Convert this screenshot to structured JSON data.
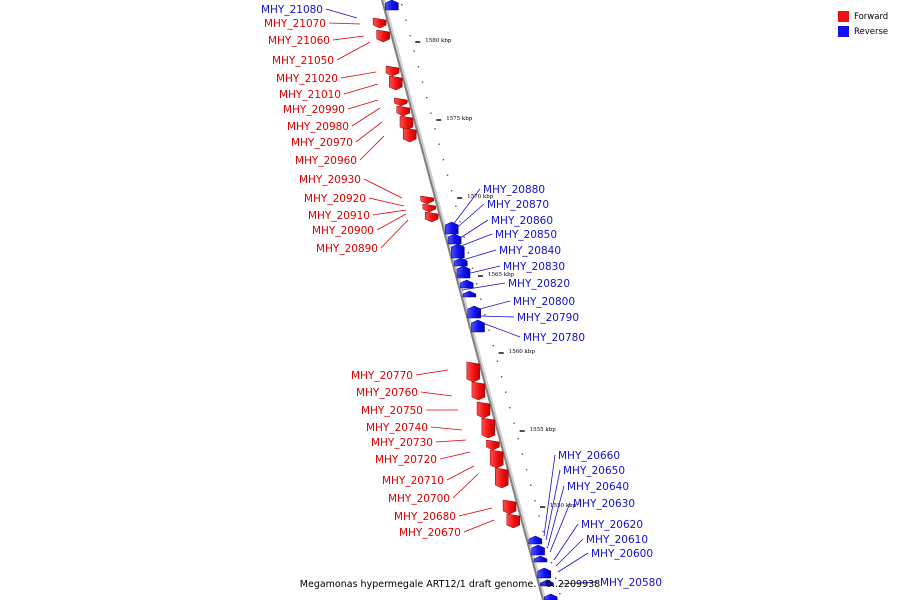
{
  "caption": "Megamonas hypermegale ART12/1 draft genome. - 0..2209938",
  "legend": {
    "items": [
      {
        "label": "Forward",
        "color": "#ee1111"
      },
      {
        "label": "Reverse",
        "color": "#1111ee"
      }
    ]
  },
  "ticks": [
    "1580 kbp",
    "1575 kbp",
    "1570 kbp",
    "1565 kbp",
    "1560 kbp",
    "1555 kbp",
    "1550 kbp"
  ],
  "genes": [
    {
      "name": "MHY_21080",
      "strand": "reverse"
    },
    {
      "name": "MHY_21070",
      "strand": "forward"
    },
    {
      "name": "MHY_21060",
      "strand": "forward"
    },
    {
      "name": "MHY_21050",
      "strand": "forward"
    },
    {
      "name": "MHY_21020",
      "strand": "forward"
    },
    {
      "name": "MHY_21010",
      "strand": "forward"
    },
    {
      "name": "MHY_20990",
      "strand": "forward"
    },
    {
      "name": "MHY_20980",
      "strand": "forward"
    },
    {
      "name": "MHY_20970",
      "strand": "forward"
    },
    {
      "name": "MHY_20960",
      "strand": "forward"
    },
    {
      "name": "MHY_20930",
      "strand": "forward"
    },
    {
      "name": "MHY_20920",
      "strand": "forward"
    },
    {
      "name": "MHY_20910",
      "strand": "forward"
    },
    {
      "name": "MHY_20900",
      "strand": "forward"
    },
    {
      "name": "MHY_20890",
      "strand": "forward"
    },
    {
      "name": "MHY_20880",
      "strand": "reverse"
    },
    {
      "name": "MHY_20870",
      "strand": "reverse"
    },
    {
      "name": "MHY_20860",
      "strand": "reverse"
    },
    {
      "name": "MHY_20850",
      "strand": "reverse"
    },
    {
      "name": "MHY_20840",
      "strand": "reverse"
    },
    {
      "name": "MHY_20830",
      "strand": "reverse"
    },
    {
      "name": "MHY_20820",
      "strand": "reverse"
    },
    {
      "name": "MHY_20800",
      "strand": "reverse"
    },
    {
      "name": "MHY_20790",
      "strand": "reverse"
    },
    {
      "name": "MHY_20780",
      "strand": "reverse"
    },
    {
      "name": "MHY_20770",
      "strand": "forward"
    },
    {
      "name": "MHY_20760",
      "strand": "forward"
    },
    {
      "name": "MHY_20750",
      "strand": "forward"
    },
    {
      "name": "MHY_20740",
      "strand": "forward"
    },
    {
      "name": "MHY_20730",
      "strand": "forward"
    },
    {
      "name": "MHY_20720",
      "strand": "forward"
    },
    {
      "name": "MHY_20710",
      "strand": "forward"
    },
    {
      "name": "MHY_20700",
      "strand": "forward"
    },
    {
      "name": "MHY_20680",
      "strand": "forward"
    },
    {
      "name": "MHY_20670",
      "strand": "forward"
    },
    {
      "name": "MHY_20660",
      "strand": "reverse"
    },
    {
      "name": "MHY_20650",
      "strand": "reverse"
    },
    {
      "name": "MHY_20640",
      "strand": "reverse"
    },
    {
      "name": "MHY_20630",
      "strand": "reverse"
    },
    {
      "name": "MHY_20620",
      "strand": "reverse"
    },
    {
      "name": "MHY_20610",
      "strand": "reverse"
    },
    {
      "name": "MHY_20600",
      "strand": "reverse"
    },
    {
      "name": "MHY_20580",
      "strand": "reverse"
    }
  ]
}
